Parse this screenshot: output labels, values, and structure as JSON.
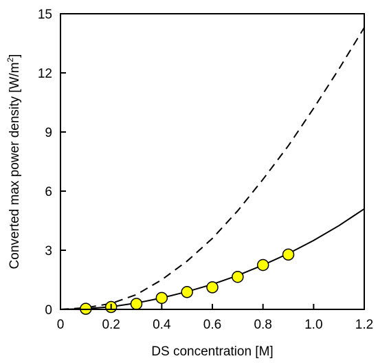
{
  "chart_data": {
    "type": "scatter",
    "xlabel": "DS concentration [M]",
    "ylabel_main": "Converted max power density [W/m",
    "ylabel_sup": "2",
    "ylabel_end": "]",
    "xlim": [
      0,
      1.2
    ],
    "ylim": [
      0,
      15
    ],
    "x_ticks": [
      "0",
      "0.2",
      "0.4",
      "0.6",
      "0.8",
      "1.0",
      "1.2"
    ],
    "y_ticks": [
      "0",
      "3",
      "6",
      "9",
      "12",
      "15"
    ],
    "grid": false,
    "legend": "none",
    "series": [
      {
        "style": "markers",
        "marker_color": "#ffff00",
        "x": [
          0.1,
          0.2,
          0.3,
          0.4,
          0.5,
          0.6,
          0.7,
          0.8,
          0.9
        ],
        "y": [
          0.03,
          0.12,
          0.28,
          0.58,
          0.88,
          1.12,
          1.65,
          2.25,
          2.78
        ]
      },
      {
        "style": "solid-line",
        "line_color": "#000000",
        "x": [
          0.0,
          0.1,
          0.2,
          0.3,
          0.4,
          0.5,
          0.6,
          0.7,
          0.8,
          0.9,
          1.0,
          1.1,
          1.2
        ],
        "y": [
          0.0,
          0.03,
          0.13,
          0.32,
          0.58,
          0.9,
          1.27,
          1.72,
          2.25,
          2.83,
          3.5,
          4.25,
          5.1
        ]
      },
      {
        "style": "dashed-line",
        "line_color": "#000000",
        "x": [
          0.0,
          0.1,
          0.2,
          0.3,
          0.4,
          0.5,
          0.6,
          0.7,
          0.8,
          0.9,
          1.0,
          1.1,
          1.2
        ],
        "y": [
          0.0,
          0.08,
          0.3,
          0.75,
          1.5,
          2.45,
          3.6,
          5.0,
          6.6,
          8.3,
          10.2,
          12.2,
          14.3
        ]
      }
    ]
  }
}
